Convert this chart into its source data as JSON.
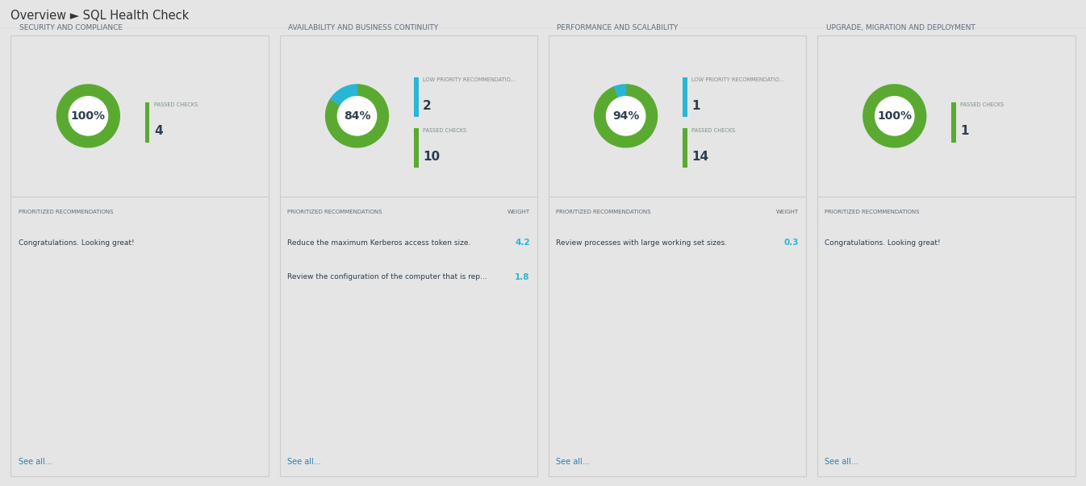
{
  "title": "SQL Health Check",
  "breadcrumb": "Overview ► SQL Health Check",
  "bg_color": "#e5e5e5",
  "card_bg": "#ffffff",
  "panels": [
    {
      "title": "SECURITY AND COMPLIANCE",
      "percent": 100,
      "donut_green": 100,
      "donut_blue": 0,
      "stats": [
        {
          "label": "PASSED CHECKS",
          "value": "4",
          "color": "green"
        }
      ],
      "recommendations": [
        {
          "text": "Congratulations. Looking great!",
          "weight": null
        }
      ],
      "see_all": "See all..."
    },
    {
      "title": "AVAILABILITY AND BUSINESS CONTINUITY",
      "percent": 84,
      "donut_green": 84,
      "donut_blue": 16,
      "stats": [
        {
          "label": "LOW PRIORITY RECOMMENDATIO...",
          "value": "2",
          "color": "blue"
        },
        {
          "label": "PASSED CHECKS",
          "value": "10",
          "color": "green"
        }
      ],
      "recommendations": [
        {
          "text": "Reduce the maximum Kerberos access token size.",
          "weight": "4.2"
        },
        {
          "text": "Review the configuration of the computer that is rep...",
          "weight": "1.8"
        }
      ],
      "see_all": "See all..."
    },
    {
      "title": "PERFORMANCE AND SCALABILITY",
      "percent": 94,
      "donut_green": 94,
      "donut_blue": 6,
      "stats": [
        {
          "label": "LOW PRIORITY RECOMMENDATIO...",
          "value": "1",
          "color": "blue"
        },
        {
          "label": "PASSED CHECKS",
          "value": "14",
          "color": "green"
        }
      ],
      "recommendations": [
        {
          "text": "Review processes with large working set sizes.",
          "weight": "0.3"
        }
      ],
      "see_all": "See all..."
    },
    {
      "title": "UPGRADE, MIGRATION AND DEPLOYMENT",
      "percent": 100,
      "donut_green": 100,
      "donut_blue": 0,
      "stats": [
        {
          "label": "PASSED CHECKS",
          "value": "1",
          "color": "green"
        }
      ],
      "recommendations": [
        {
          "text": "Congratulations. Looking great!",
          "weight": null
        }
      ],
      "see_all": "See all..."
    }
  ],
  "colors": {
    "green": "#5aaa32",
    "blue": "#29b6d6",
    "donut_bg": "#e0e0e0",
    "text_dark": "#2c3e50",
    "text_gray": "#7f8c8d",
    "link_blue": "#2980b9",
    "weight_blue": "#29b6d6",
    "border": "#cccccc",
    "row_border": "#e8e8e8",
    "header_text": "#5d6d7e",
    "title_text": "#5d6d7e"
  }
}
